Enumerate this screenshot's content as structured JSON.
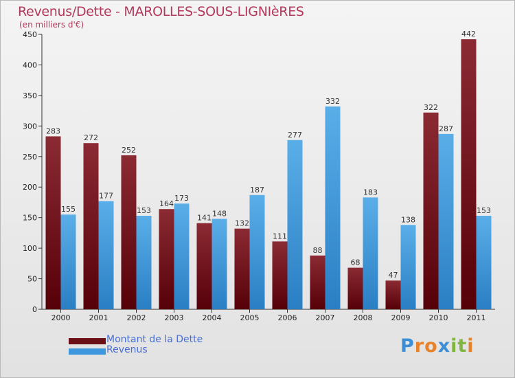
{
  "header": {
    "title": "Revenus/Dette - MAROLLES-SOUS-LIGNIèRES",
    "subtitle": "(en milliers d'€)"
  },
  "colors": {
    "dette": "#7a1b22",
    "revenus": "#3d98dd",
    "title": "#b2395b",
    "legend_text": "#4a6fd4"
  },
  "legend": [
    {
      "label": "Montant de la Dette",
      "color": "#6b0f17"
    },
    {
      "label": "Revenus",
      "color": "#3d98dd"
    }
  ],
  "logo": {
    "letters": [
      {
        "ch": "P",
        "color": "#3c8fd6"
      },
      {
        "ch": "r",
        "color": "#e8822a"
      },
      {
        "ch": "o",
        "color": "#e8822a"
      },
      {
        "ch": "x",
        "color": "#3c8fd6"
      },
      {
        "ch": "i",
        "color": "#7fb63d"
      },
      {
        "ch": "t",
        "color": "#7fb63d"
      },
      {
        "ch": "i",
        "color": "#e8822a"
      }
    ]
  },
  "chart_data": {
    "type": "bar",
    "categories": [
      "2000",
      "2001",
      "2002",
      "2003",
      "2004",
      "2005",
      "2006",
      "2007",
      "2008",
      "2009",
      "2010",
      "2011"
    ],
    "series": [
      {
        "name": "Montant de la Dette",
        "values": [
          283,
          272,
          252,
          164,
          141,
          132,
          111,
          88,
          68,
          47,
          322,
          442
        ]
      },
      {
        "name": "Revenus",
        "values": [
          155,
          177,
          153,
          173,
          148,
          187,
          277,
          332,
          183,
          138,
          287,
          153
        ]
      }
    ],
    "ylim": [
      0,
      450
    ],
    "yticks": [
      0,
      50,
      100,
      150,
      200,
      250,
      300,
      350,
      400,
      450
    ],
    "grid": false,
    "legend_position": "bottom-left"
  }
}
